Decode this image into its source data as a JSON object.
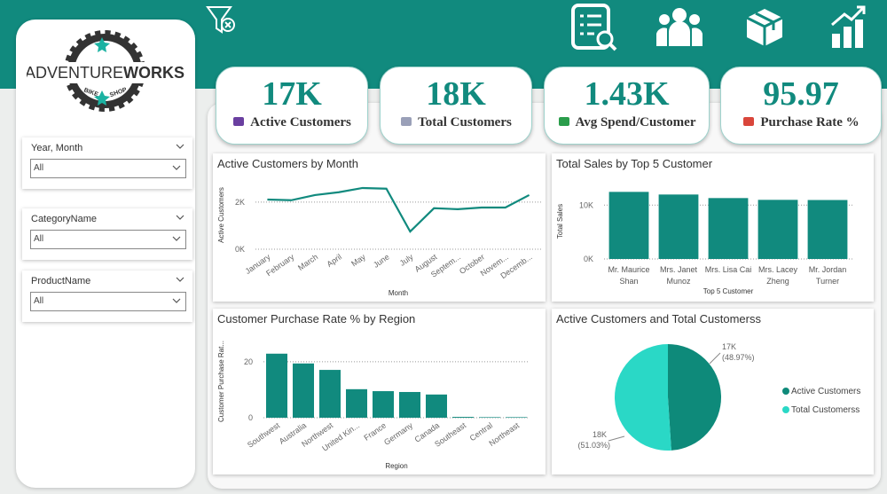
{
  "logo": {
    "brand_a": "ADVENTURE",
    "brand_b": "WORKS",
    "tag_a": "BIKE",
    "tag_b": "SHOP"
  },
  "filters": [
    {
      "label": "Year, Month",
      "value": "All"
    },
    {
      "label": "CategoryName",
      "value": "All"
    },
    {
      "label": "ProductName",
      "value": "All"
    }
  ],
  "kpis": [
    {
      "value": "17K",
      "label": "Active Customers"
    },
    {
      "value": "18K",
      "label": "Total Customers"
    },
    {
      "value": "1.43K",
      "label": "Avg Spend/Customer"
    },
    {
      "value": "95.97",
      "label": "Purchase Rate %"
    }
  ],
  "chart_data": [
    {
      "type": "line",
      "title": "Active Customers by Month",
      "x_label": "Month",
      "y_label": "Active Customers",
      "categories": [
        "January",
        "February",
        "March",
        "April",
        "May",
        "June",
        "July",
        "August",
        "Septem...",
        "October",
        "Novem...",
        "Decemb..."
      ],
      "values": [
        2110,
        2080,
        2300,
        2420,
        2600,
        2570,
        750,
        1740,
        1700,
        1770,
        1770,
        2300
      ],
      "color": "#118a7e",
      "ylim": [
        0,
        2900
      ],
      "yticks": [
        {
          "value": 0,
          "label": "0K"
        },
        {
          "value": 2000,
          "label": "2K"
        }
      ],
      "grid": true
    },
    {
      "type": "bar",
      "title": "Total Sales by Top 5 Customer",
      "x_label": "Top 5 Customer",
      "y_label": "Total Sales",
      "categories": [
        "Mr. Maurice Shan",
        "Mrs. Janet Munoz",
        "Mrs. Lisa Cai",
        "Mrs. Lacey Zheng",
        "Mr. Jordan Turner"
      ],
      "values": [
        12460,
        11970,
        11310,
        10980,
        10950
      ],
      "color": "#118a7e",
      "ylim": [
        0,
        14000
      ],
      "yticks": [
        {
          "value": 0,
          "label": "0K"
        },
        {
          "value": 10000,
          "label": "10K"
        }
      ],
      "grid": true
    },
    {
      "type": "bar",
      "title": "Customer Purchase Rate % by Region",
      "x_label": "Region",
      "y_label": "Customer Purchase Rat...",
      "categories": [
        "Southwest",
        "Australia",
        "Northwest",
        "United Kin...",
        "France",
        "Germany",
        "Canada",
        "Southeast",
        "Central",
        "Northeast"
      ],
      "values": [
        22.9,
        19.4,
        17.1,
        10.2,
        9.5,
        9.2,
        8.3,
        0.3,
        0.2,
        0.2
      ],
      "color": "#118a7e",
      "ylim": [
        0,
        26
      ],
      "yticks": [
        0,
        20
      ],
      "grid": true
    },
    {
      "type": "pie",
      "title": "Active Customers and Total Customerss",
      "categories": [
        "Active Customers",
        "Total Customerss"
      ],
      "values": [
        48.97,
        51.03
      ],
      "value_labels": [
        "(48.97%)",
        "(51.03%)"
      ],
      "count_labels": [
        "17K",
        "18K"
      ],
      "colors": [
        "#0e8a7a",
        "#2ad8c6"
      ],
      "legend": "right"
    }
  ]
}
